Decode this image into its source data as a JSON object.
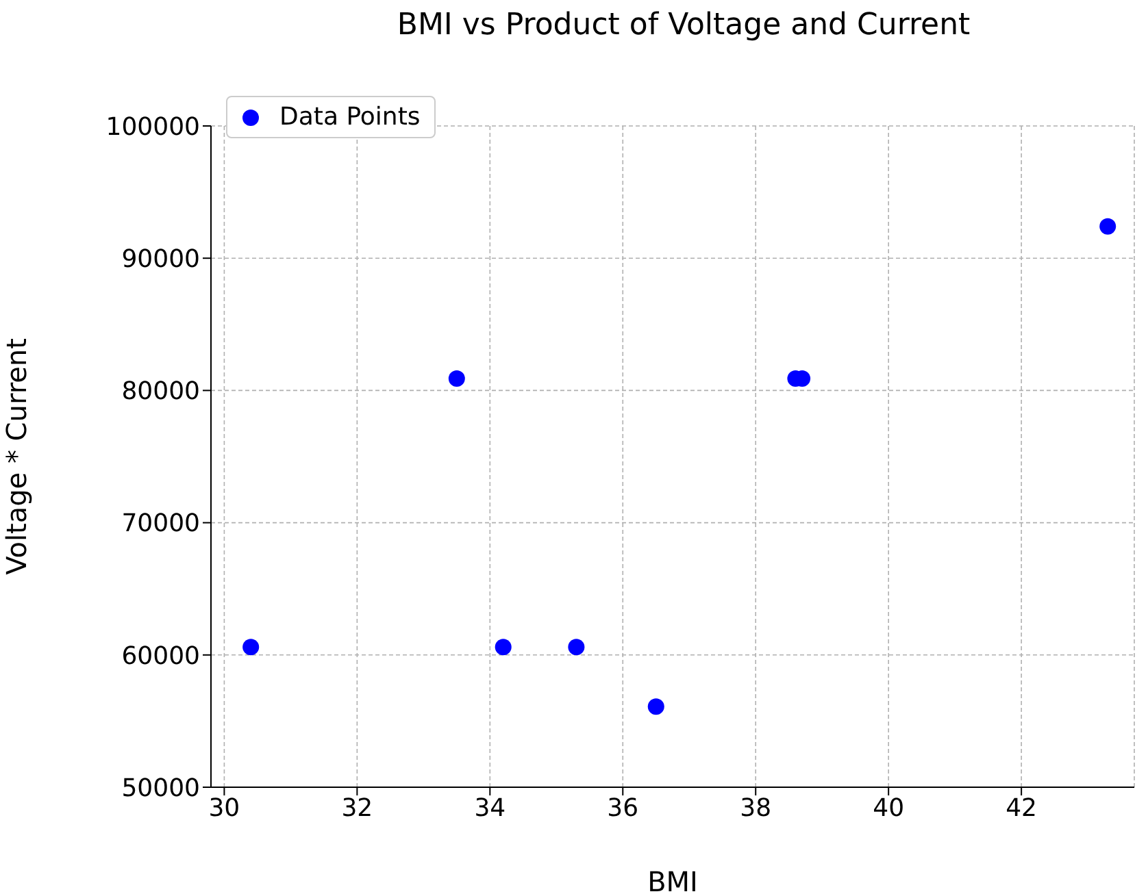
{
  "chart_data": {
    "type": "scatter",
    "title": "BMI vs Product of Voltage and Current",
    "xlabel": "BMI",
    "ylabel": "Voltage * Current",
    "x": [
      30.4,
      33.5,
      34.2,
      35.3,
      36.5,
      38.6,
      38.7,
      43.3
    ],
    "series": [
      {
        "name": "Data Points",
        "color": "#0000ff",
        "values": [
          60600,
          80900,
          60600,
          60600,
          56100,
          80900,
          80900,
          92400
        ]
      }
    ],
    "xlim": [
      29.8,
      43.7
    ],
    "xticks": [
      30,
      32,
      34,
      36,
      38,
      40,
      42
    ],
    "ylim": [
      50000,
      100000
    ],
    "yticks": [
      50000,
      60000,
      70000,
      80000,
      90000,
      100000
    ],
    "grid": true,
    "legend": "top left",
    "marker": "circle"
  }
}
